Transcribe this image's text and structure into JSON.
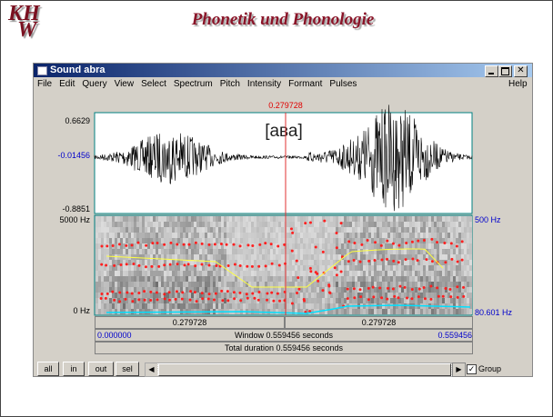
{
  "header": {
    "logo_top": "KH",
    "logo_bottom": "W",
    "title": "Phonetik und Phonologie"
  },
  "window": {
    "title": "Sound abra",
    "menu": [
      "File",
      "Edit",
      "Query",
      "View",
      "Select",
      "Spectrum",
      "Pitch",
      "Intensity",
      "Formant",
      "Pulses"
    ],
    "help": "Help",
    "waveform": {
      "top": "0.6629",
      "zero": "-0.01456",
      "bottom": "-0.8851",
      "cursor": "0.279728",
      "annotation": "[ава]"
    },
    "spectrogram": {
      "top": "5000 Hz",
      "bottom": "0 Hz",
      "pitch_top": "500 Hz",
      "pitch_bottom": "80.601 Hz"
    },
    "bars": {
      "left_part": "0.279728",
      "right_part": "0.279728",
      "window_start": "0.000000",
      "window": "Window 0.559456 seconds",
      "window_end": "0.559456",
      "total": "Total duration 0.559456 seconds"
    },
    "buttons": [
      "all",
      "in",
      "out",
      "sel"
    ],
    "group": "Group"
  }
}
